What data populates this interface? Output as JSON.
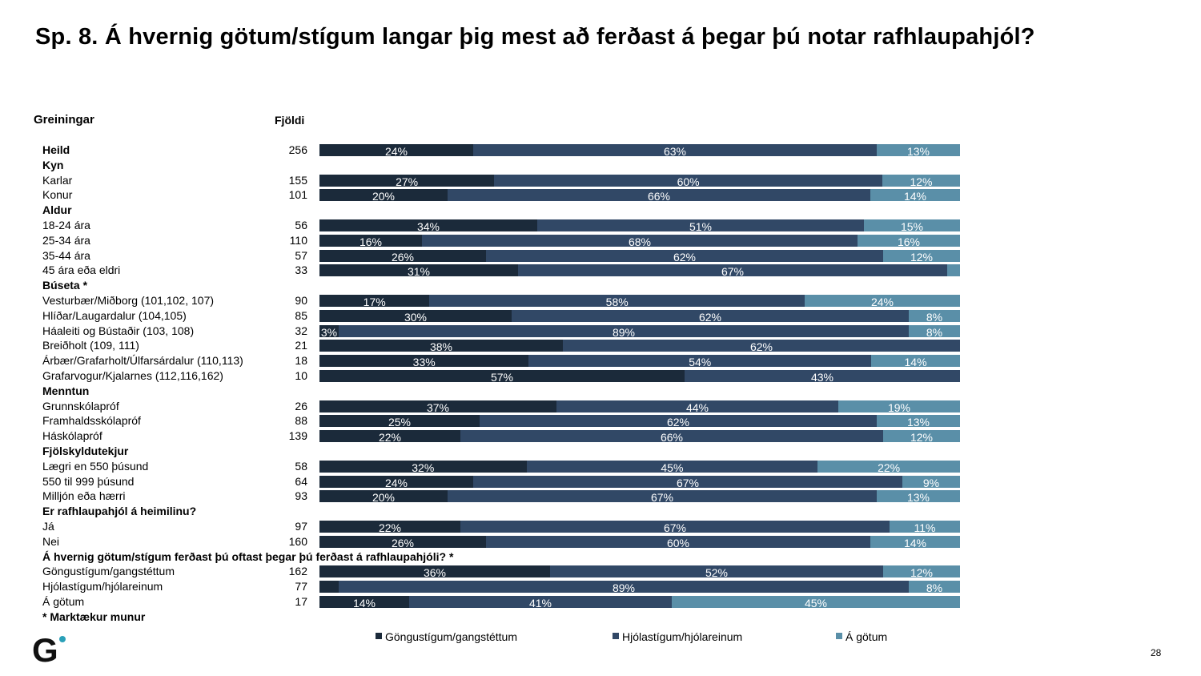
{
  "title": "Sp. 8. Á hvernig götum/stígum langar þig mest að ferðast á þegar þú notar rafhlaupahjól?",
  "header": {
    "greiningar": "Greiningar",
    "fjoldi": "Fjöldi"
  },
  "page_number": "28",
  "logo_letter": "G",
  "colors": {
    "s1": "#1b2a3a",
    "s2": "#314866",
    "s3": "#5a8fa8",
    "logo_dot": "#2aa0b8"
  },
  "chart_data": {
    "type": "bar",
    "orientation": "horizontal",
    "stacked": true,
    "xlim": [
      0,
      100
    ],
    "series": [
      {
        "name": "Göngustígum/gangstéttum"
      },
      {
        "name": "Hjólastígum/hjólareinum"
      },
      {
        "name": "Á götum"
      }
    ],
    "legend_position": "bottom",
    "rows": [
      {
        "label": "Heild",
        "header": true,
        "n": "256",
        "values": [
          24,
          63,
          13
        ],
        "labels": [
          "24%",
          "63%",
          "13%"
        ]
      },
      {
        "label": "Kyn",
        "header": true
      },
      {
        "label": "Karlar",
        "n": "155",
        "values": [
          27,
          60,
          12
        ],
        "labels": [
          "27%",
          "60%",
          "12%"
        ]
      },
      {
        "label": "Konur",
        "n": "101",
        "values": [
          20,
          66,
          14
        ],
        "labels": [
          "20%",
          "66%",
          "14%"
        ]
      },
      {
        "label": "Aldur",
        "header": true
      },
      {
        "label": "18-24 ára",
        "n": "56",
        "values": [
          34,
          51,
          15
        ],
        "labels": [
          "34%",
          "51%",
          "15%"
        ]
      },
      {
        "label": "25-34 ára",
        "n": "110",
        "values": [
          16,
          68,
          16
        ],
        "labels": [
          "16%",
          "68%",
          "16%"
        ]
      },
      {
        "label": "35-44 ára",
        "n": "57",
        "values": [
          26,
          62,
          12
        ],
        "labels": [
          "26%",
          "62%",
          "12%"
        ]
      },
      {
        "label": "45 ára eða eldri",
        "n": "33",
        "values": [
          31,
          67,
          2
        ],
        "labels": [
          "31%",
          "67%",
          ""
        ]
      },
      {
        "label": "Búseta *",
        "header": true
      },
      {
        "label": "Vesturbær/Miðborg (101,102, 107)",
        "n": "90",
        "values": [
          17,
          58,
          24
        ],
        "labels": [
          "17%",
          "58%",
          "24%"
        ]
      },
      {
        "label": "Hlíðar/Laugardalur (104,105)",
        "n": "85",
        "values": [
          30,
          62,
          8
        ],
        "labels": [
          "30%",
          "62%",
          "8%"
        ]
      },
      {
        "label": "Háaleiti og Bústaðir (103, 108)",
        "n": "32",
        "values": [
          3,
          89,
          8
        ],
        "labels": [
          "3%",
          "89%",
          "8%"
        ]
      },
      {
        "label": "Breiðholt (109, 111)",
        "n": "21",
        "values": [
          38,
          62,
          0
        ],
        "labels": [
          "38%",
          "62%",
          ""
        ]
      },
      {
        "label": "Árbær/Grafarholt/Úlfarsárdalur (110,113)",
        "n": "18",
        "values": [
          33,
          54,
          14
        ],
        "labels": [
          "33%",
          "54%",
          "14%"
        ]
      },
      {
        "label": "Grafarvogur/Kjalarnes (112,116,162)",
        "n": "10",
        "values": [
          57,
          43,
          0
        ],
        "labels": [
          "57%",
          "43%",
          ""
        ]
      },
      {
        "label": "Menntun",
        "header": true
      },
      {
        "label": "Grunnskólapróf",
        "n": "26",
        "values": [
          37,
          44,
          19
        ],
        "labels": [
          "37%",
          "44%",
          "19%"
        ]
      },
      {
        "label": "Framhaldsskólapróf",
        "n": "88",
        "values": [
          25,
          62,
          13
        ],
        "labels": [
          "25%",
          "62%",
          "13%"
        ]
      },
      {
        "label": "Háskólapróf",
        "n": "139",
        "values": [
          22,
          66,
          12
        ],
        "labels": [
          "22%",
          "66%",
          "12%"
        ]
      },
      {
        "label": "Fjölskyldutekjur",
        "header": true
      },
      {
        "label": "Lægri en 550 þúsund",
        "n": "58",
        "values": [
          32,
          45,
          22
        ],
        "labels": [
          "32%",
          "45%",
          "22%"
        ]
      },
      {
        "label": "550 til 999 þúsund",
        "n": "64",
        "values": [
          24,
          67,
          9
        ],
        "labels": [
          "24%",
          "67%",
          "9%"
        ]
      },
      {
        "label": "Milljón eða hærri",
        "n": "93",
        "values": [
          20,
          67,
          13
        ],
        "labels": [
          "20%",
          "67%",
          "13%"
        ]
      },
      {
        "label": "Er rafhlaupahjól á heimilinu?",
        "header": true
      },
      {
        "label": "Já",
        "n": "97",
        "values": [
          22,
          67,
          11
        ],
        "labels": [
          "22%",
          "67%",
          "11%"
        ]
      },
      {
        "label": "Nei",
        "n": "160",
        "values": [
          26,
          60,
          14
        ],
        "labels": [
          "26%",
          "60%",
          "14%"
        ]
      },
      {
        "label": "Á hvernig götum/stígum ferðast þú oftast þegar þú ferðast á rafhlaupahjóli? *",
        "header": true
      },
      {
        "label": "Göngustígum/gangstéttum",
        "n": "162",
        "values": [
          36,
          52,
          12
        ],
        "labels": [
          "36%",
          "52%",
          "12%"
        ]
      },
      {
        "label": "Hjólastígum/hjólareinum",
        "n": "77",
        "values": [
          3,
          89,
          8
        ],
        "labels": [
          "",
          "89%",
          "8%"
        ]
      },
      {
        "label": "Á götum",
        "n": "17",
        "values": [
          14,
          41,
          45
        ],
        "labels": [
          "14%",
          "41%",
          "45%"
        ]
      },
      {
        "label": "* Marktækur munur",
        "header": true
      }
    ]
  }
}
